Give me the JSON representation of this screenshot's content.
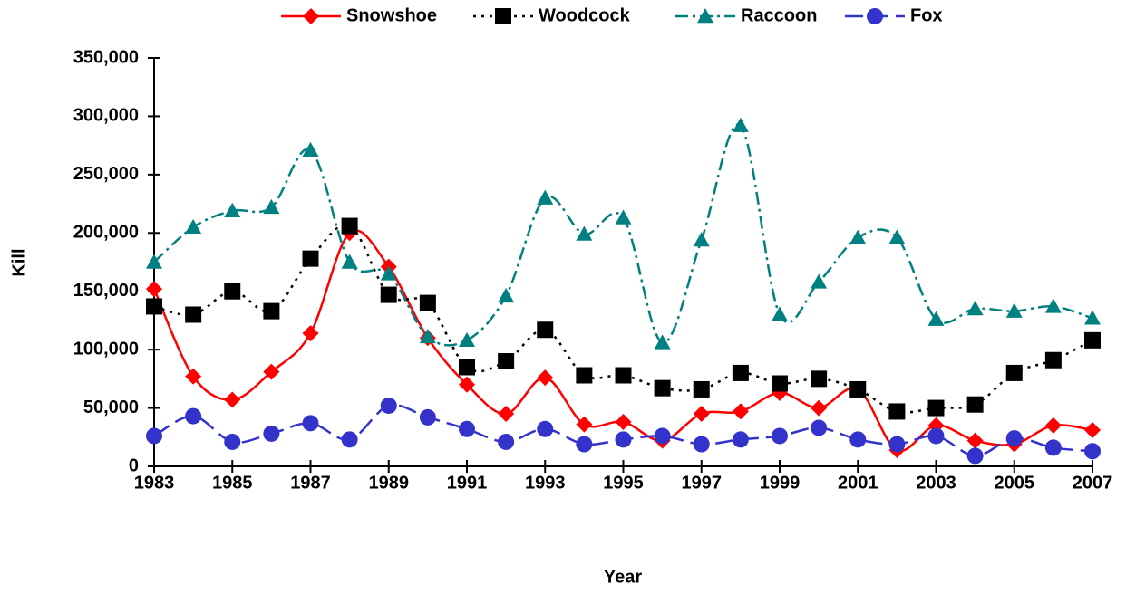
{
  "chart_data": {
    "type": "line",
    "x_label": "Year",
    "y_label": "Kill",
    "x": [
      1983,
      1984,
      1985,
      1986,
      1987,
      1988,
      1989,
      1990,
      1991,
      1992,
      1993,
      1994,
      1995,
      1996,
      1997,
      1998,
      1999,
      2000,
      2001,
      2002,
      2003,
      2004,
      2005,
      2006,
      2007
    ],
    "xlim": [
      1983,
      2007
    ],
    "xticks": [
      1983,
      1985,
      1987,
      1989,
      1991,
      1993,
      1995,
      1997,
      1999,
      2001,
      2003,
      2005,
      2007
    ],
    "ylim": [
      0,
      350000
    ],
    "yticks": [
      0,
      {
        "value": 50000,
        "label": "50,000"
      },
      {
        "value": 100000,
        "label": "100,000"
      },
      {
        "value": 150000,
        "label": "150,000"
      },
      {
        "value": 200000,
        "label": "200,000"
      },
      {
        "value": 250000,
        "label": "250,000"
      },
      {
        "value": 300000,
        "label": "300,000"
      },
      {
        "value": 350000,
        "label": "350,000"
      }
    ],
    "legend": "top",
    "series": [
      {
        "name": "Snowshoe",
        "color": "#ff0000",
        "marker": "diamond",
        "dash": "solid",
        "values": [
          152000,
          77000,
          57000,
          81000,
          114000,
          200000,
          171000,
          110000,
          70000,
          45000,
          76000,
          36000,
          38000,
          22000,
          45000,
          47000,
          63000,
          50000,
          66000,
          14000,
          35000,
          22000,
          19000,
          35000,
          31000
        ]
      },
      {
        "name": "Woodcock",
        "color": "#000000",
        "marker": "square",
        "dash": "dot",
        "values": [
          137000,
          130000,
          150000,
          133000,
          178000,
          206000,
          147000,
          140000,
          85000,
          90000,
          117000,
          78000,
          78000,
          67000,
          66000,
          80000,
          71000,
          75000,
          66000,
          47000,
          50000,
          53000,
          80000,
          91000,
          108000
        ]
      },
      {
        "name": "Raccoon",
        "color": "#008080",
        "marker": "triangle",
        "dash": "dashdot",
        "values": [
          175000,
          205000,
          219000,
          222000,
          271000,
          175000,
          165000,
          111000,
          108000,
          146000,
          230000,
          199000,
          213000,
          106000,
          194000,
          292000,
          130000,
          158000,
          196000,
          196000,
          126000,
          135000,
          133000,
          137000,
          127000
        ]
      },
      {
        "name": "Fox",
        "color": "#3333cc",
        "marker": "circle",
        "dash": "longdash",
        "values": [
          26000,
          43000,
          21000,
          28000,
          37000,
          23000,
          52000,
          42000,
          32000,
          21000,
          32000,
          19000,
          23000,
          26000,
          19000,
          23000,
          26000,
          33000,
          23000,
          19000,
          26000,
          9000,
          24000,
          16000,
          13000
        ]
      }
    ]
  }
}
